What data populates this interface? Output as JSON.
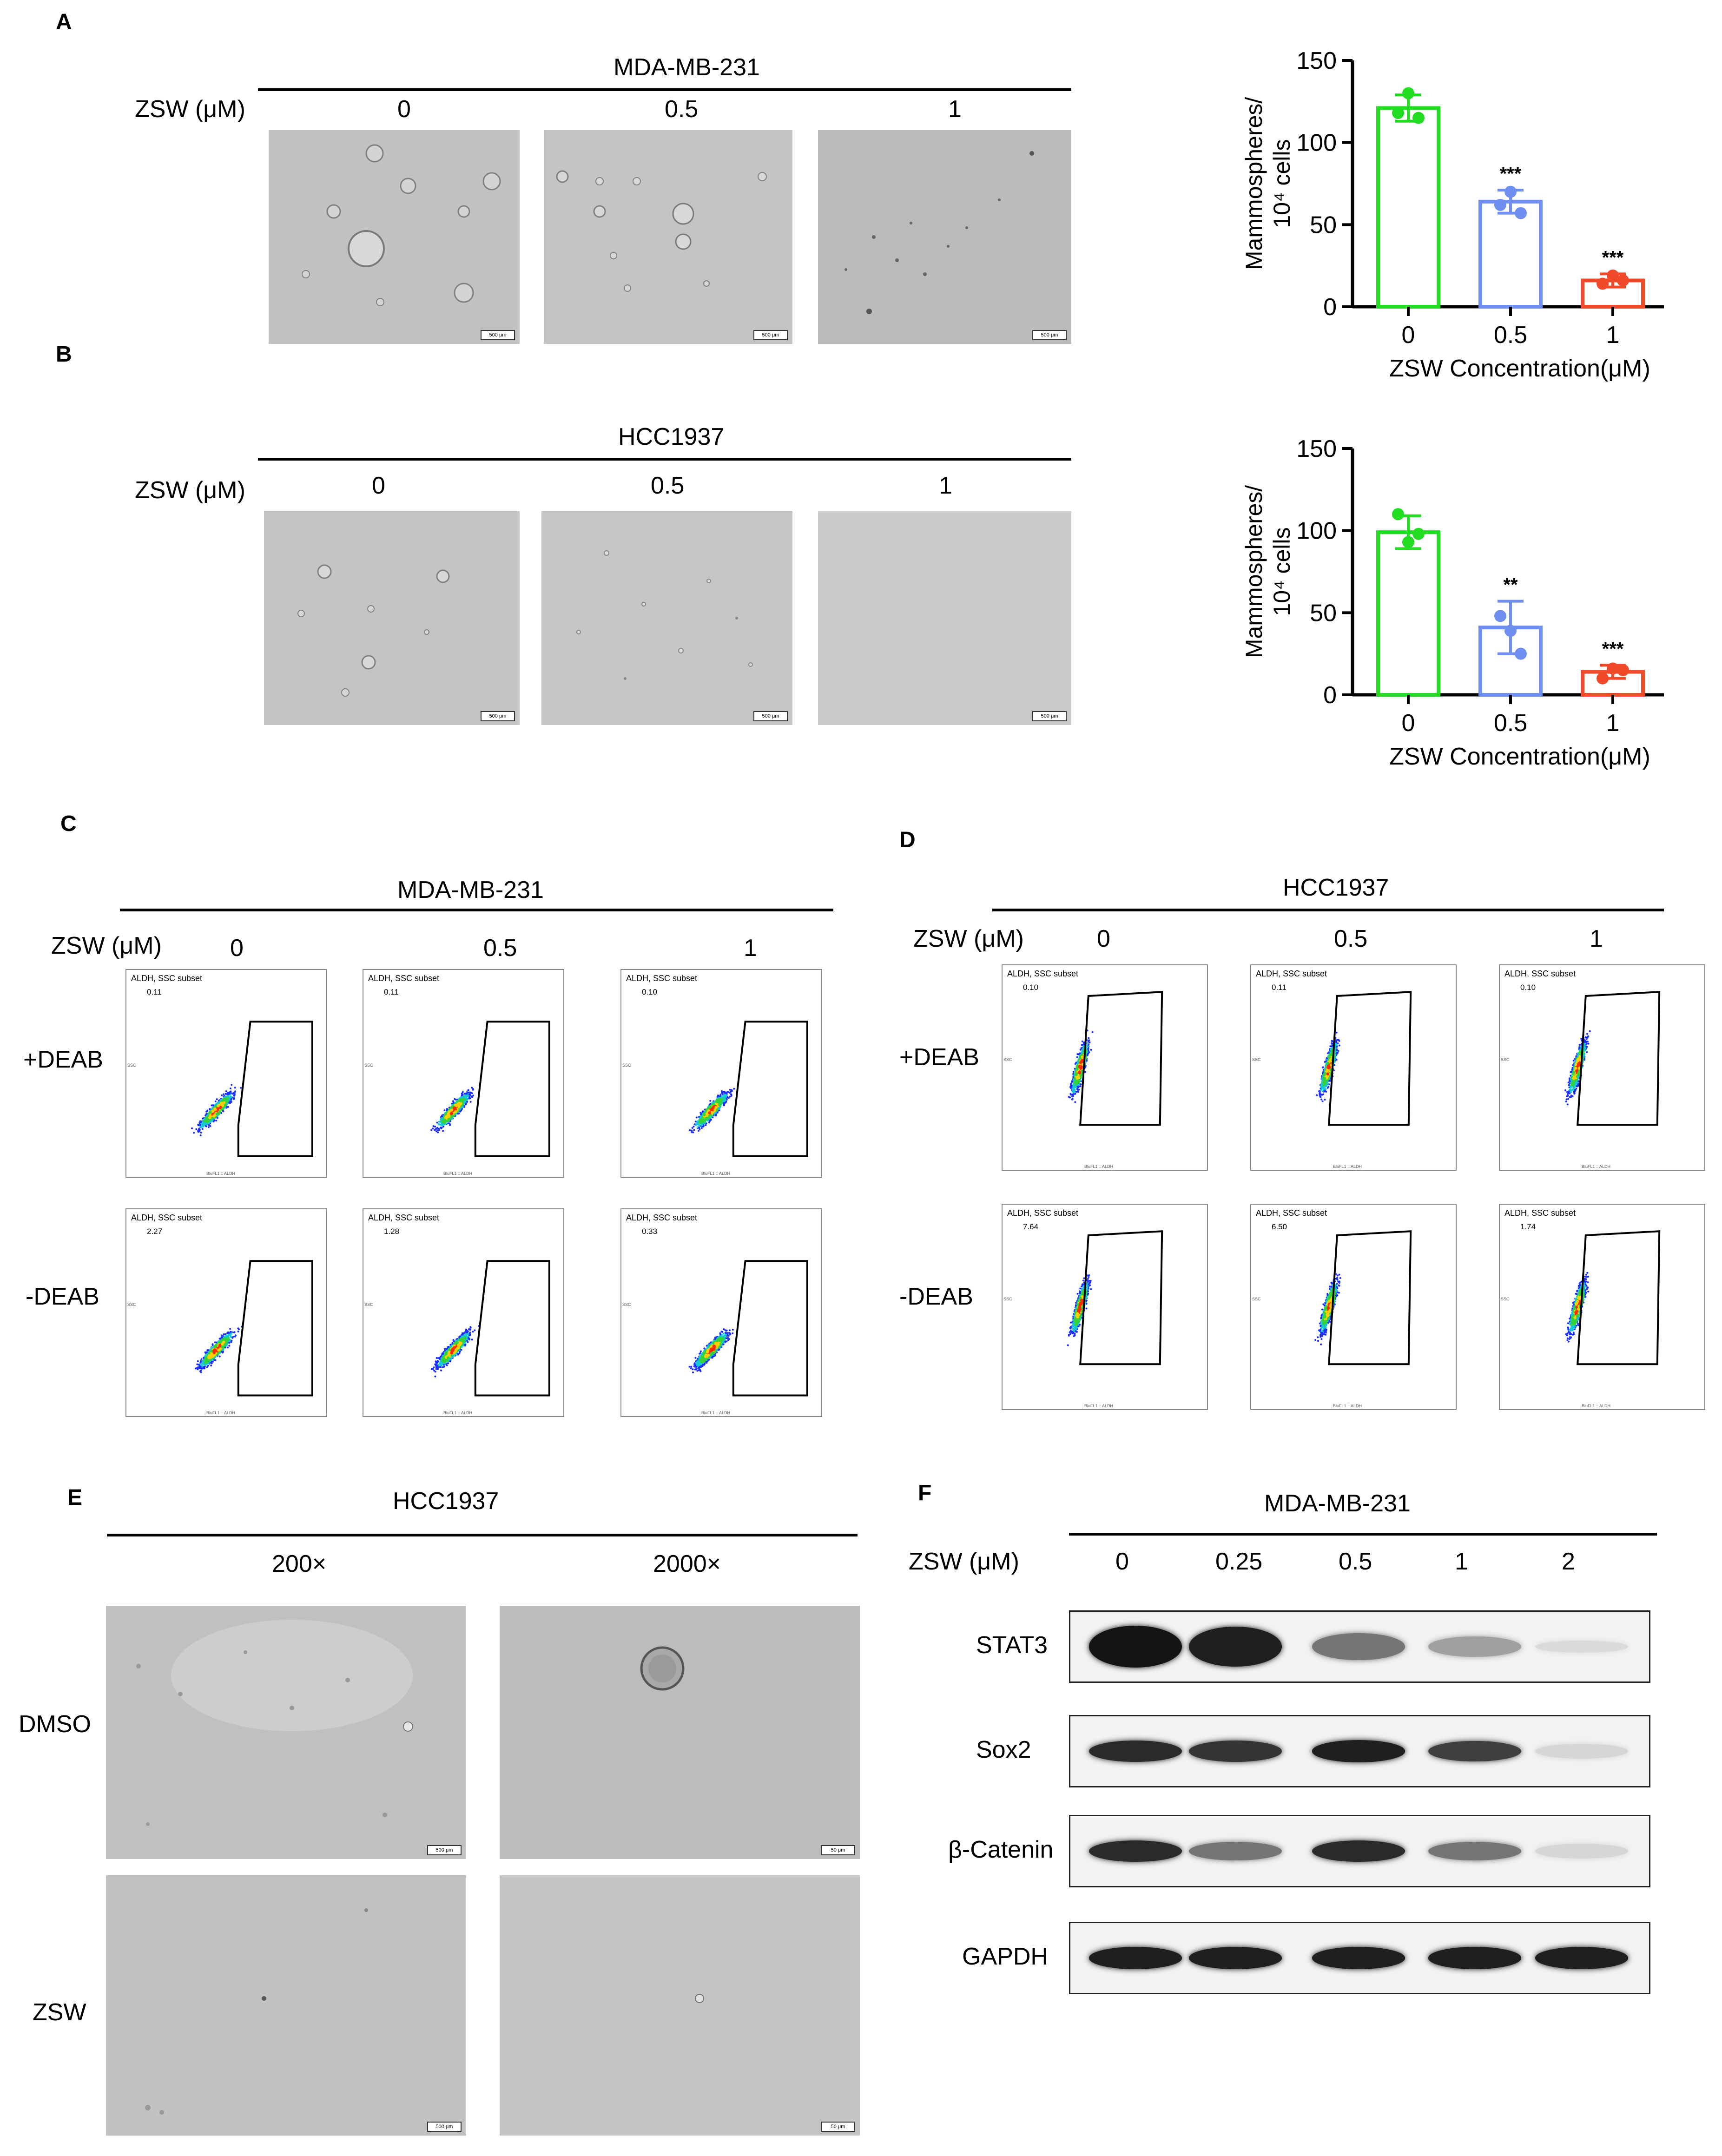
{
  "panels": {
    "A": "A",
    "B": "B",
    "C": "C",
    "D": "D",
    "E": "E",
    "F": "F"
  },
  "panel_a": {
    "cell_line": "MDA-MB-231",
    "treatment_label": "ZSW (μM)",
    "doses": [
      "0",
      "0.5",
      "1"
    ],
    "scale_bar": "500 μm"
  },
  "panel_b": {
    "cell_line": "HCC1937",
    "treatment_label": "ZSW (μM)",
    "doses": [
      "0",
      "0.5",
      "1"
    ],
    "scale_bar": "500 μm"
  },
  "panel_c": {
    "cell_line": "MDA-MB-231",
    "treatment_label": "ZSW (μM)",
    "doses": [
      "0",
      "0.5",
      "1"
    ],
    "row_labels": [
      "+DEAB",
      "-DEAB"
    ],
    "gate_title": "ALDH, SSC subset",
    "values_plus": [
      "0.11",
      "0.11",
      "0.10"
    ],
    "values_minus": [
      "2.27",
      "1.28",
      "0.33"
    ],
    "x_axis": "BluFL1 :: ALDH",
    "y_axis": "SSC"
  },
  "panel_d": {
    "cell_line": "HCC1937",
    "treatment_label": "ZSW (μM)",
    "doses": [
      "0",
      "0.5",
      "1"
    ],
    "row_labels": [
      "+DEAB",
      "-DEAB"
    ],
    "gate_title": "ALDH, SSC subset",
    "values_plus": [
      "0.10",
      "0.11",
      "0.10"
    ],
    "values_minus": [
      "7.64",
      "6.50",
      "1.74"
    ],
    "x_axis": "BluFL1 :: ALDH",
    "y_axis": "SSC"
  },
  "panel_e": {
    "cell_line": "HCC1937",
    "magnifications": [
      "200×",
      "2000×"
    ],
    "row_labels": [
      "DMSO",
      "ZSW"
    ],
    "scale_bars": [
      "500 μm",
      "50 μm",
      "500 μm",
      "50 μm"
    ]
  },
  "panel_f": {
    "cell_line": "MDA-MB-231",
    "treatment_label": "ZSW (μM)",
    "doses": [
      "0",
      "0.25",
      "0.5",
      "1",
      "2"
    ],
    "proteins": [
      "STAT3",
      "Sox2",
      "β-Catenin",
      "GAPDH"
    ]
  },
  "chart_data": [
    {
      "type": "bar",
      "panel": "A",
      "categories": [
        "0",
        "0.5",
        "1"
      ],
      "values": [
        121,
        64,
        16
      ],
      "errors": [
        8,
        7,
        4
      ],
      "points": [
        [
          118,
          130,
          115
        ],
        [
          62,
          70,
          57
        ],
        [
          14,
          19,
          16
        ]
      ],
      "significance": [
        "",
        "***",
        "***"
      ],
      "colors": [
        "#22dd22",
        "#6f8ff0",
        "#f04a2a"
      ],
      "ylim": [
        0,
        150
      ],
      "yticks": [
        0,
        50,
        100,
        150
      ],
      "ylabel_line1": "Mammospheres/",
      "ylabel_line2": "10⁴ cells",
      "xlabel": "ZSW Concentration(μM)"
    },
    {
      "type": "bar",
      "panel": "B",
      "categories": [
        "0",
        "0.5",
        "1"
      ],
      "values": [
        99,
        41,
        14
      ],
      "errors": [
        10,
        16,
        4
      ],
      "points": [
        [
          110,
          93,
          98
        ],
        [
          48,
          39,
          25
        ],
        [
          10,
          16,
          15
        ]
      ],
      "significance": [
        "",
        "**",
        "***"
      ],
      "colors": [
        "#22dd22",
        "#6f8ff0",
        "#f04a2a"
      ],
      "ylim": [
        0,
        150
      ],
      "yticks": [
        0,
        50,
        100,
        150
      ],
      "ylabel_line1": "Mammospheres/",
      "ylabel_line2": "10⁴ cells",
      "xlabel": "ZSW Concentration(μM)"
    }
  ],
  "blot_intensity": {
    "STAT3": [
      1.0,
      0.95,
      0.55,
      0.35,
      0.08
    ],
    "Sox2": [
      0.9,
      0.85,
      0.95,
      0.8,
      0.1
    ],
    "β-Catenin": [
      0.9,
      0.55,
      0.9,
      0.55,
      0.1
    ],
    "GAPDH": [
      0.95,
      0.95,
      0.95,
      0.95,
      0.95
    ]
  }
}
